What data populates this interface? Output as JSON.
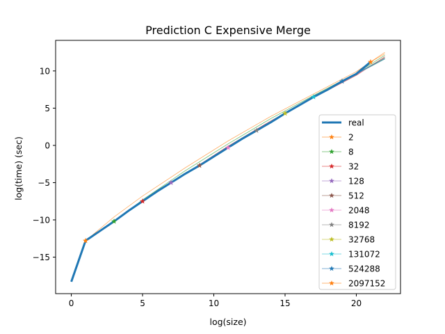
{
  "chart_data": {
    "type": "line",
    "title": "Prediction C Expensive Merge",
    "xlabel": "log(size)",
    "ylabel": "log(time) (sec)",
    "xlim": [
      -1.1,
      23.1
    ],
    "ylim": [
      -19.9,
      14.1
    ],
    "xticks": [
      0,
      5,
      10,
      15,
      20
    ],
    "yticks": [
      -15,
      -10,
      -5,
      0,
      5,
      10
    ],
    "grid": false,
    "legend_position": "lower right",
    "real": {
      "name": "real",
      "color": "#1f77b4",
      "x": [
        0,
        1,
        2,
        3,
        4,
        5,
        6,
        7,
        8,
        9,
        10,
        11,
        12,
        13,
        14,
        15,
        16,
        17,
        18,
        19,
        20,
        21
      ],
      "y": [
        -18.3,
        -12.8,
        -11.5,
        -10.2,
        -8.8,
        -7.5,
        -6.2,
        -5.0,
        -3.8,
        -2.7,
        -1.5,
        -0.3,
        0.9,
        2.0,
        3.1,
        4.3,
        5.4,
        6.5,
        7.5,
        8.6,
        9.6,
        11.2
      ]
    },
    "series": [
      {
        "name": "2",
        "color": "#ff7f0e",
        "start": 1
      },
      {
        "name": "8",
        "color": "#2ca02c",
        "start": 3
      },
      {
        "name": "32",
        "color": "#d62728",
        "start": 5
      },
      {
        "name": "128",
        "color": "#9467bd",
        "start": 7
      },
      {
        "name": "512",
        "color": "#8c564b",
        "start": 9
      },
      {
        "name": "2048",
        "color": "#e377c2",
        "start": 11
      },
      {
        "name": "8192",
        "color": "#7f7f7f",
        "start": 13
      },
      {
        "name": "32768",
        "color": "#bcbd22",
        "start": 15
      },
      {
        "name": "131072",
        "color": "#17becf",
        "start": 17
      },
      {
        "name": "524288",
        "color": "#1f77b4",
        "start": 19
      },
      {
        "name": "2097152",
        "color": "#ff7f0e",
        "start": 21
      }
    ],
    "prediction_fan": [
      {
        "x": [
          1,
          3,
          5,
          8,
          11,
          14,
          17,
          20,
          22
        ],
        "y": [
          -12.8,
          -9.6,
          -6.8,
          -3.0,
          0.6,
          3.9,
          6.9,
          9.9,
          12.5
        ]
      },
      {
        "x": [
          3,
          5,
          8,
          11,
          14,
          17,
          20,
          22
        ],
        "y": [
          -10.2,
          -7.3,
          -3.4,
          0.2,
          3.6,
          6.7,
          9.7,
          12.1
        ]
      },
      {
        "x": [
          5,
          8,
          11,
          14,
          17,
          20,
          22
        ],
        "y": [
          -7.5,
          -3.8,
          -0.1,
          3.3,
          6.4,
          9.4,
          11.9
        ]
      },
      {
        "x": [
          7,
          10,
          13,
          16,
          19,
          22
        ],
        "y": [
          -5.0,
          -1.4,
          2.0,
          5.3,
          8.5,
          11.7
        ]
      },
      {
        "x": [
          9,
          12,
          15,
          18,
          22
        ],
        "y": [
          -2.7,
          0.9,
          4.3,
          7.5,
          11.6
        ]
      },
      {
        "x": [
          11,
          14,
          17,
          20,
          22
        ],
        "y": [
          -0.3,
          3.1,
          6.4,
          9.5,
          11.7
        ]
      },
      {
        "x": [
          13,
          16,
          19,
          22
        ],
        "y": [
          2.0,
          5.4,
          8.6,
          11.8
        ]
      },
      {
        "x": [
          15,
          18,
          22
        ],
        "y": [
          4.3,
          7.5,
          11.7
        ]
      },
      {
        "x": [
          17,
          20,
          22
        ],
        "y": [
          6.5,
          9.6,
          11.6
        ]
      },
      {
        "x": [
          19,
          22
        ],
        "y": [
          8.6,
          11.7
        ]
      },
      {
        "x": [
          21,
          22
        ],
        "y": [
          11.2,
          12.3
        ]
      }
    ]
  }
}
